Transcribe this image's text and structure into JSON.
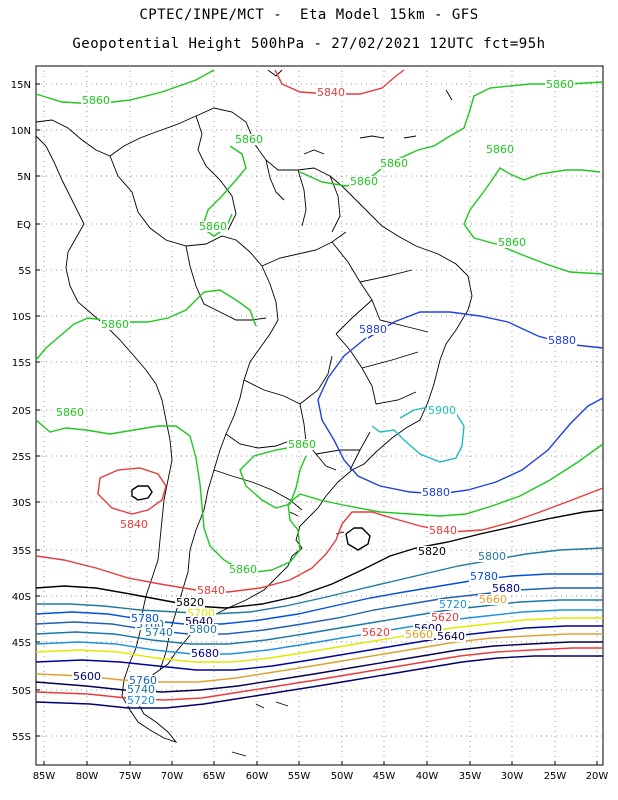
{
  "header": {
    "line1": "CPTEC/INPE/MCT -  Eta Model 15km - GFS",
    "line2": "Geopotential Height 500hPa - 27/02/2021 12UTC fct=95h"
  },
  "axes": {
    "lat_labels": [
      "15N",
      "10N",
      "5N",
      "EQ",
      "5S",
      "10S",
      "15S",
      "20S",
      "25S",
      "30S",
      "35S",
      "40S",
      "45S",
      "50S",
      "55S"
    ],
    "lon_labels": [
      "85W",
      "80W",
      "75W",
      "70W",
      "65W",
      "60W",
      "55W",
      "50W",
      "45W",
      "40W",
      "35W",
      "30W",
      "25W",
      "20W"
    ],
    "grid": "dotted"
  },
  "colors": {
    "c5600": "#00006e",
    "c5620": "#e83c3c",
    "c5640": "#000050",
    "c5660": "#e0a030",
    "c5680": "#0000a0",
    "c5700": "#e6e600",
    "c5720": "#2090e0",
    "c5740": "#1878a8",
    "c5760": "#2060b0",
    "c5780": "#0050e0",
    "c5800": "#1e7aa0",
    "c5820": "#000000",
    "c5840": "#e63c3c",
    "c5860": "#1ec81e",
    "c5880": "#2040e0",
    "c5900": "#1ebcbc",
    "land_border": "#000000"
  },
  "contour_labels": [
    {
      "text": "5860",
      "color": "#1ec81e"
    },
    {
      "text": "5840",
      "color": "#e63c3c"
    },
    {
      "text": "5860",
      "color": "#1ec81e"
    },
    {
      "text": "5860",
      "color": "#1ec81e"
    },
    {
      "text": "5860",
      "color": "#1ec81e"
    },
    {
      "text": "5860",
      "color": "#1ec81e"
    },
    {
      "text": "5860",
      "color": "#1ec81e"
    },
    {
      "text": "5860",
      "color": "#1ec81e"
    },
    {
      "text": "5860",
      "color": "#1ec81e"
    },
    {
      "text": "5860",
      "color": "#1ec81e"
    },
    {
      "text": "5880",
      "color": "#2040e0"
    },
    {
      "text": "5880",
      "color": "#2040e0"
    },
    {
      "text": "5900",
      "color": "#1ebcbc"
    },
    {
      "text": "5860",
      "color": "#1ec81e"
    },
    {
      "text": "5880",
      "color": "#2040e0"
    },
    {
      "text": "5860",
      "color": "#1ec81e"
    },
    {
      "text": "5840",
      "color": "#e63c3c"
    },
    {
      "text": "5840",
      "color": "#e63c3c"
    },
    {
      "text": "5820",
      "color": "#000000"
    },
    {
      "text": "5800",
      "color": "#1e7aa0"
    },
    {
      "text": "5860",
      "color": "#1ec81e"
    },
    {
      "text": "5780",
      "color": "#0050e0"
    },
    {
      "text": "5840",
      "color": "#e63c3c"
    },
    {
      "text": "5760",
      "color": "#2060b0"
    },
    {
      "text": "5820",
      "color": "#000000"
    },
    {
      "text": "5740",
      "color": "#1878a8"
    },
    {
      "text": "5720",
      "color": "#2090e0"
    },
    {
      "text": "5700",
      "color": "#e6e600"
    },
    {
      "text": "5680",
      "color": "#0000a0"
    },
    {
      "text": "5660",
      "color": "#e0a030"
    },
    {
      "text": "5640",
      "color": "#000050"
    },
    {
      "text": "5620",
      "color": "#e83c3c"
    },
    {
      "text": "5600",
      "color": "#00006e"
    },
    {
      "text": "5660",
      "color": "#e0a030"
    },
    {
      "text": "5640",
      "color": "#000050"
    },
    {
      "text": "5620",
      "color": "#e83c3c"
    },
    {
      "text": "5600",
      "color": "#00006e"
    },
    {
      "text": "5760",
      "color": "#2060b0"
    },
    {
      "text": "5740",
      "color": "#1878a8"
    },
    {
      "text": "5720",
      "color": "#2090e0"
    },
    {
      "text": "5800",
      "color": "#1e7aa0"
    },
    {
      "text": "5780",
      "color": "#0050e0"
    },
    {
      "text": "5680",
      "color": "#0000a0"
    }
  ]
}
